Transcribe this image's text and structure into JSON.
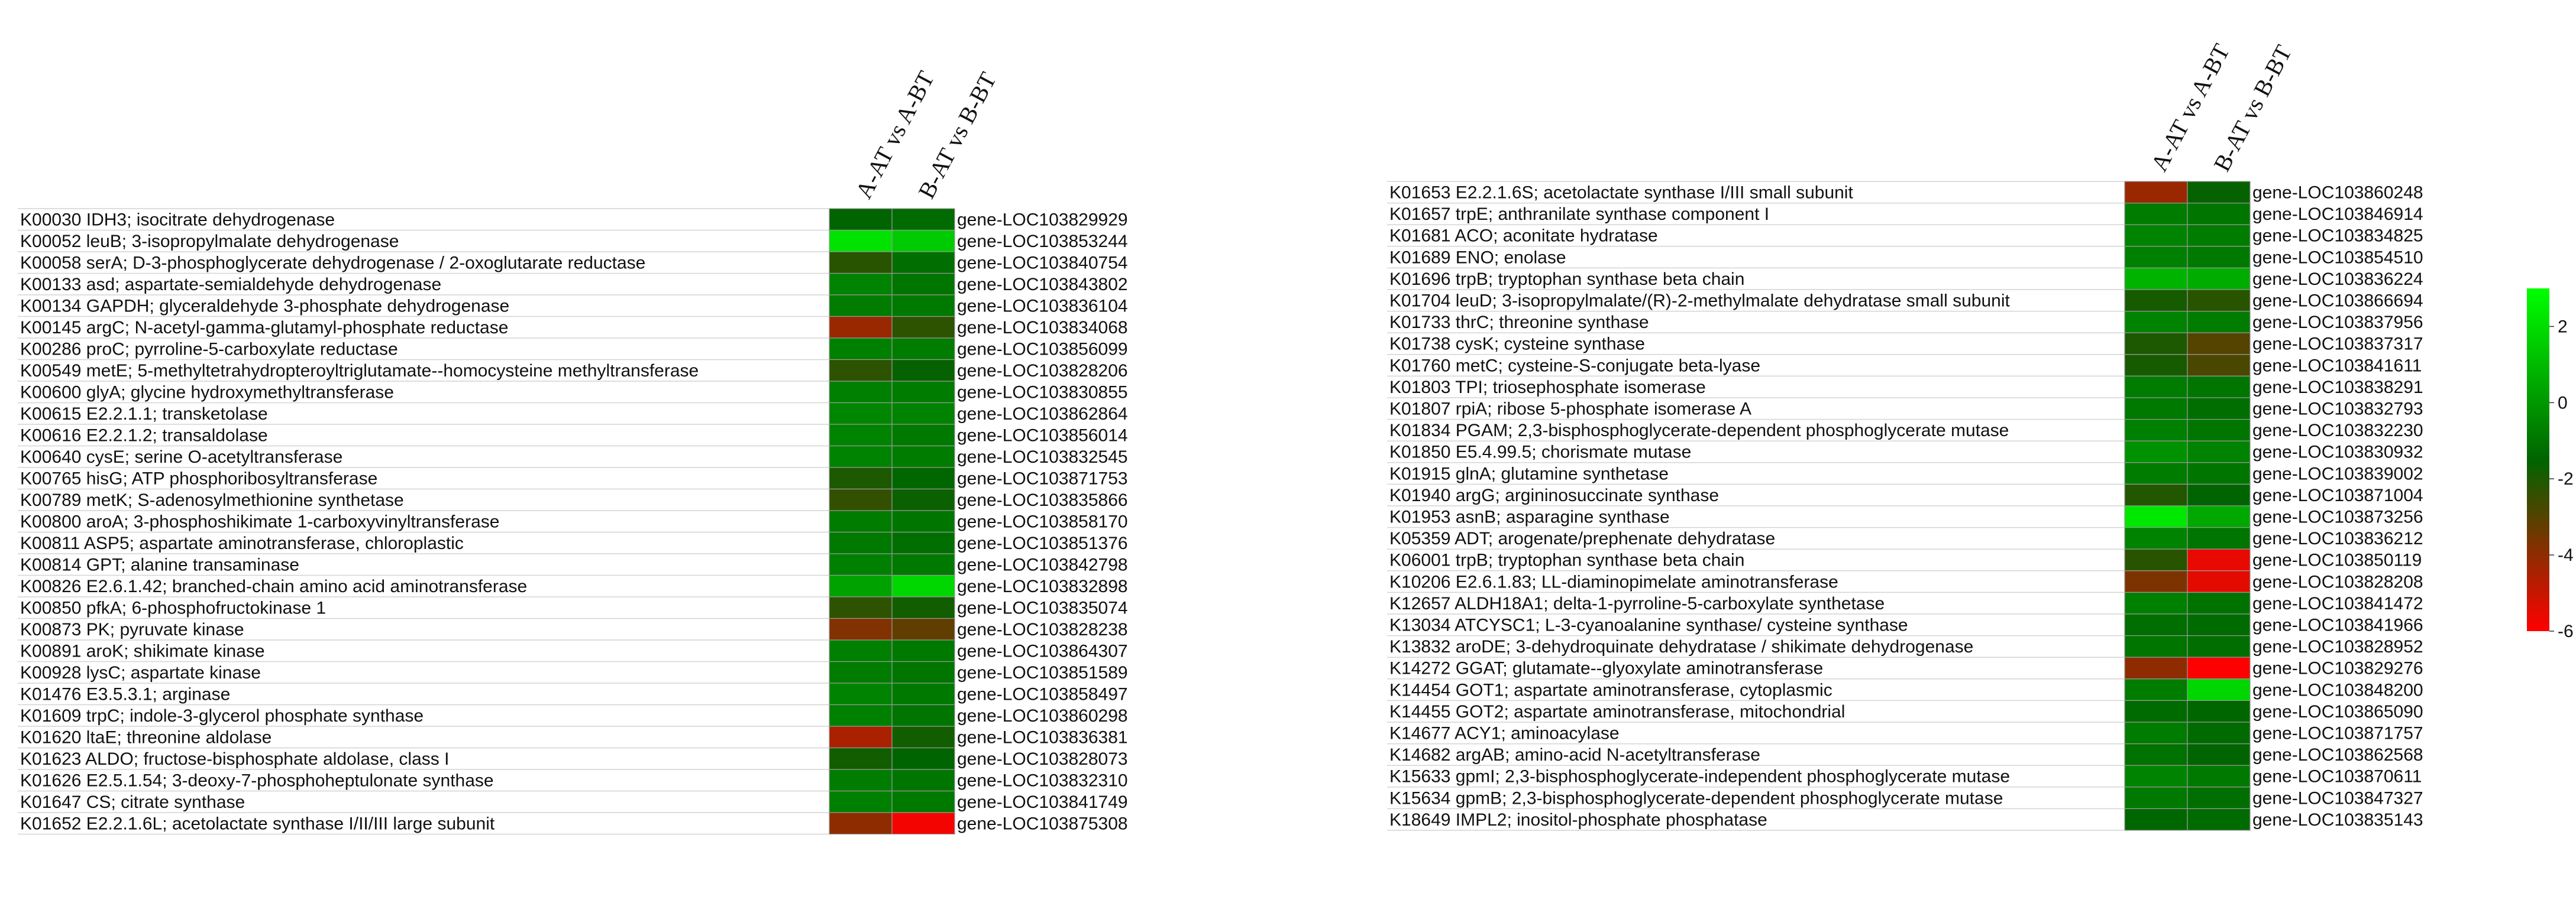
{
  "chart_data": [
    {
      "type": "heatmap",
      "columns": [
        "A-AT vs A-BT",
        "B-AT vs B-BT"
      ],
      "rows": [
        {
          "label": "K00030 IDH3; isocitrate dehydrogenase",
          "gene": "gene-LOC103829929",
          "values": [
            -1.5,
            -1.3
          ]
        },
        {
          "label": "K00052 leuB; 3-isopropylmalate dehydrogenase",
          "gene": "gene-LOC103853244",
          "values": [
            2.2,
            1.5
          ]
        },
        {
          "label": "K00058 serA; D-3-phosphoglycerate dehydrogenase / 2-oxoglutarate reductase",
          "gene": "gene-LOC103840754",
          "values": [
            -2.2,
            -1.2
          ]
        },
        {
          "label": "K00133 asd; aspartate-semialdehyde dehydrogenase",
          "gene": "gene-LOC103843802",
          "values": [
            -0.6,
            -1.0
          ]
        },
        {
          "label": "K00134 GAPDH; glyceraldehyde 3-phosphate dehydrogenase",
          "gene": "gene-LOC103836104",
          "values": [
            -0.8,
            -0.9
          ]
        },
        {
          "label": "K00145 argC; N-acetyl-gamma-glutamyl-phosphate reductase",
          "gene": "gene-LOC103834068",
          "values": [
            -4.2,
            -2.3
          ]
        },
        {
          "label": "K00286 proC; pyrroline-5-carboxylate reductase",
          "gene": "gene-LOC103856099",
          "values": [
            -0.7,
            -0.8
          ]
        },
        {
          "label": "K00549 metE; 5-methyltetrahydropteroyltriglutamate--homocysteine methyltransferase",
          "gene": "gene-LOC103828206",
          "values": [
            -2.3,
            -1.6
          ]
        },
        {
          "label": "K00600 glyA; glycine hydroxymethyltransferase",
          "gene": "gene-LOC103830855",
          "values": [
            -0.7,
            -0.8
          ]
        },
        {
          "label": "K00615 E2.2.1.1; transketolase",
          "gene": "gene-LOC103862864",
          "values": [
            -0.5,
            -0.6
          ]
        },
        {
          "label": "K00616 E2.2.1.2; transaldolase",
          "gene": "gene-LOC103856014",
          "values": [
            -0.6,
            -0.9
          ]
        },
        {
          "label": "K00640 cysE; serine O-acetyltransferase",
          "gene": "gene-LOC103832545",
          "values": [
            -0.6,
            -0.8
          ]
        },
        {
          "label": "K00765 hisG; ATP phosphoribosyltransferase",
          "gene": "gene-LOC103871753",
          "values": [
            -2.0,
            -1.4
          ]
        },
        {
          "label": "K00789 metK; S-adenosylmethionine synthetase",
          "gene": "gene-LOC103835866",
          "values": [
            -2.4,
            -1.7
          ]
        },
        {
          "label": "K00800 aroA; 3-phosphoshikimate 1-carboxyvinyltransferase",
          "gene": "gene-LOC103858170",
          "values": [
            -0.8,
            -1.0
          ]
        },
        {
          "label": "K00811 ASP5; aspartate aminotransferase, chloroplastic",
          "gene": "gene-LOC103851376",
          "values": [
            -0.9,
            -1.2
          ]
        },
        {
          "label": "K00814 GPT; alanine transaminase",
          "gene": "gene-LOC103842798",
          "values": [
            -0.7,
            -0.9
          ]
        },
        {
          "label": "K00826 E2.6.1.42; branched-chain amino acid aminotransferase",
          "gene": "gene-LOC103832898",
          "values": [
            0.3,
            1.8
          ]
        },
        {
          "label": "K00850 pfkA; 6-phosphofructokinase 1",
          "gene": "gene-LOC103835074",
          "values": [
            -2.3,
            -1.8
          ]
        },
        {
          "label": "K00873 PK; pyruvate kinase",
          "gene": "gene-LOC103828238",
          "values": [
            -3.8,
            -3.2
          ]
        },
        {
          "label": "K00891 aroK; shikimate kinase",
          "gene": "gene-LOC103864307",
          "values": [
            -0.7,
            -0.9
          ]
        },
        {
          "label": "K00928 lysC; aspartate kinase",
          "gene": "gene-LOC103851589",
          "values": [
            -0.8,
            -1.0
          ]
        },
        {
          "label": "K01476 E3.5.3.1; arginase",
          "gene": "gene-LOC103858497",
          "values": [
            -0.6,
            -0.9
          ]
        },
        {
          "label": "K01609 trpC; indole-3-glycerol phosphate synthase",
          "gene": "gene-LOC103860298",
          "values": [
            -0.7,
            -1.0
          ]
        },
        {
          "label": "K01620 ltaE; threonine aldolase",
          "gene": "gene-LOC103836381",
          "values": [
            -4.5,
            -1.8
          ]
        },
        {
          "label": "K01623 ALDO; fructose-bisphosphate aldolase, class I",
          "gene": "gene-LOC103828073",
          "values": [
            -1.8,
            -1.5
          ]
        },
        {
          "label": "K01626 E2.5.1.54; 3-deoxy-7-phosphoheptulonate synthase",
          "gene": "gene-LOC103832310",
          "values": [
            -0.8,
            -1.0
          ]
        },
        {
          "label": "K01647 CS; citrate synthase",
          "gene": "gene-LOC103841749",
          "values": [
            -0.7,
            -0.9
          ]
        },
        {
          "label": "K01652 E2.2.1.6L; acetolactate synthase I/II/III large subunit",
          "gene": "gene-LOC103875308",
          "values": [
            -4.0,
            -5.8
          ]
        }
      ]
    },
    {
      "type": "heatmap",
      "columns": [
        "A-AT vs A-BT",
        "B-AT vs B-BT"
      ],
      "rows": [
        {
          "label": "K01653 E2.2.1.6S; acetolactate synthase I/III small subunit",
          "gene": "gene-LOC103860248",
          "values": [
            -4.2,
            -1.6
          ]
        },
        {
          "label": "K01657 trpE; anthranilate synthase component I",
          "gene": "gene-LOC103846914",
          "values": [
            -0.8,
            -1.0
          ]
        },
        {
          "label": "K01681 ACO; aconitate hydratase",
          "gene": "gene-LOC103834825",
          "values": [
            -0.6,
            -0.8
          ]
        },
        {
          "label": "K01689 ENO; enolase",
          "gene": "gene-LOC103854510",
          "values": [
            -0.7,
            -0.9
          ]
        },
        {
          "label": "K01696 trpB; tryptophan synthase beta chain",
          "gene": "gene-LOC103836224",
          "values": [
            0.8,
            0.6
          ]
        },
        {
          "label": "K01704 leuD; 3-isopropylmalate/(R)-2-methylmalate dehydratase small subunit",
          "gene": "gene-LOC103866694",
          "values": [
            -1.9,
            -2.2
          ]
        },
        {
          "label": "K01733 thrC; threonine synthase",
          "gene": "gene-LOC103837956",
          "values": [
            -0.6,
            -0.8
          ]
        },
        {
          "label": "K01738 cysK; cysteine synthase",
          "gene": "gene-LOC103837317",
          "values": [
            -2.0,
            -3.0
          ]
        },
        {
          "label": "K01760 metC; cysteine-S-conjugate beta-lyase",
          "gene": "gene-LOC103841611",
          "values": [
            -1.9,
            -2.8
          ]
        },
        {
          "label": "K01803 TPI; triosephosphate isomerase",
          "gene": "gene-LOC103838291",
          "values": [
            -0.8,
            -1.0
          ]
        },
        {
          "label": "K01807 rpiA; ribose 5-phosphate isomerase A",
          "gene": "gene-LOC103832793",
          "values": [
            -0.9,
            -1.2
          ]
        },
        {
          "label": "K01834 PGAM; 2,3-bisphosphoglycerate-dependent phosphoglycerate mutase",
          "gene": "gene-LOC103832230",
          "values": [
            -0.7,
            -1.0
          ]
        },
        {
          "label": "K01850 E5.4.99.5; chorismate mutase",
          "gene": "gene-LOC103830932",
          "values": [
            -0.2,
            -0.6
          ]
        },
        {
          "label": "K01915 glnA; glutamine synthetase",
          "gene": "gene-LOC103839002",
          "values": [
            -0.8,
            -1.0
          ]
        },
        {
          "label": "K01940 argG; argininosuccinate synthase",
          "gene": "gene-LOC103871004",
          "values": [
            -2.1,
            -1.5
          ]
        },
        {
          "label": "K01953 asnB; asparagine synthase",
          "gene": "gene-LOC103873256",
          "values": [
            2.3,
            0.5
          ]
        },
        {
          "label": "K05359 ADT; arogenate/prephenate dehydratase",
          "gene": "gene-LOC103836212",
          "values": [
            -0.6,
            -1.0
          ]
        },
        {
          "label": "K06001 trpB; tryptophan synthase beta chain",
          "gene": "gene-LOC103850119",
          "values": [
            -2.2,
            -5.6
          ]
        },
        {
          "label": "K10206 E2.6.1.83; LL-diaminopimelate aminotransferase",
          "gene": "gene-LOC103828208",
          "values": [
            -3.7,
            -5.5
          ]
        },
        {
          "label": "K12657 ALDH18A1; delta-1-pyrroline-5-carboxylate synthetase",
          "gene": "gene-LOC103841472",
          "values": [
            -0.7,
            -1.1
          ]
        },
        {
          "label": "K13034 ATCYSC1; L-3-cyanoalanine synthase/ cysteine synthase",
          "gene": "gene-LOC103841966",
          "values": [
            -1.2,
            -1.3
          ]
        },
        {
          "label": "K13832 aroDE; 3-dehydroquinate dehydratase / shikimate dehydrogenase",
          "gene": "gene-LOC103828952",
          "values": [
            -1.0,
            -1.2
          ]
        },
        {
          "label": "K14272 GGAT; glutamate--glyoxylate aminotransferase",
          "gene": "gene-LOC103829276",
          "values": [
            -4.0,
            -6.0
          ]
        },
        {
          "label": "K14454 GOT1; aspartate aminotransferase, cytoplasmic",
          "gene": "gene-LOC103848200",
          "values": [
            -0.8,
            1.8
          ]
        },
        {
          "label": "K14455 GOT2; aspartate aminotransferase, mitochondrial",
          "gene": "gene-LOC103865090",
          "values": [
            -1.3,
            -1.4
          ]
        },
        {
          "label": "K14677 ACY1; aminoacylase",
          "gene": "gene-LOC103871757",
          "values": [
            -0.8,
            -1.3
          ]
        },
        {
          "label": "K14682 argAB; amino-acid N-acetyltransferase",
          "gene": "gene-LOC103862568",
          "values": [
            -1.1,
            -1.5
          ]
        },
        {
          "label": "K15633 gpmI; 2,3-bisphosphoglycerate-independent phosphoglycerate mutase",
          "gene": "gene-LOC103870611",
          "values": [
            -0.6,
            -0.9
          ]
        },
        {
          "label": "K15634 gpmB; 2,3-bisphosphoglycerate-dependent phosphoglycerate mutase",
          "gene": "gene-LOC103847327",
          "values": [
            -0.9,
            -1.2
          ]
        },
        {
          "label": "K18649 IMPL2; inositol-phosphate phosphatase",
          "gene": "gene-LOC103835143",
          "values": [
            -1.4,
            -1.3
          ]
        }
      ]
    }
  ],
  "legend": {
    "ticks": [
      "2",
      "0",
      "-2",
      "-4",
      "-6"
    ],
    "range": [
      -6,
      3
    ],
    "colors": {
      "high": "#00ff00",
      "mid": "#006400",
      "low": "#ff0000"
    }
  }
}
